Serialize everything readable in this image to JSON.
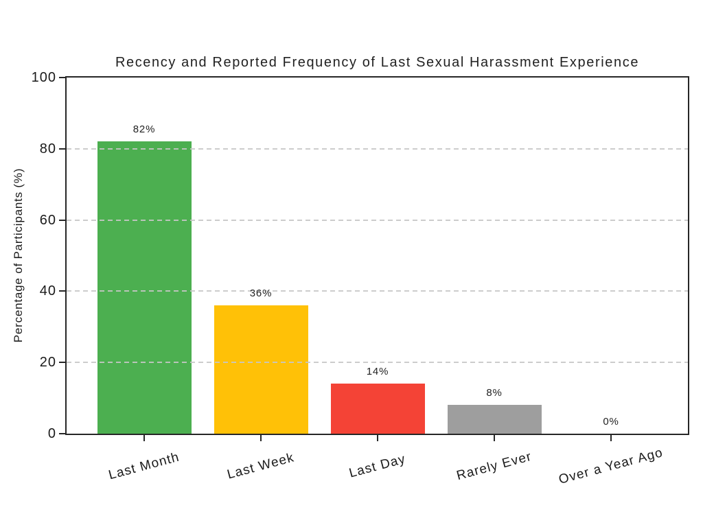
{
  "page": {
    "background_color": "#ffffff"
  },
  "chart_data": {
    "type": "bar",
    "title": "Recency and Reported Frequency of Last Sexual Harassment Experience",
    "xlabel": "",
    "ylabel": "Percentage of Participants (%)",
    "categories": [
      "Last Month",
      "Last Week",
      "Last Day",
      "Rarely Ever",
      "Over a Year Ago"
    ],
    "values": [
      82,
      36,
      14,
      8,
      0
    ],
    "value_labels": [
      "82%",
      "36%",
      "14%",
      "8%",
      "0%"
    ],
    "bar_colors": [
      "#4caf50",
      "#ffc107",
      "#f44336",
      "#9e9e9e",
      "#9e9e9e"
    ],
    "ylim": [
      0,
      100
    ],
    "yticks": [
      0,
      20,
      40,
      60,
      80,
      100
    ],
    "ytick_labels": [
      "0",
      "20",
      "40",
      "60",
      "80",
      "100"
    ],
    "grid": "horizontal dashed gridlines at 20, 40, 60, 80, drawn over bars",
    "legend": "none",
    "styles": {
      "axis_color": "#262626",
      "grid_color": "#c6c6c6",
      "text_color": "#1a1a1a",
      "title_color": "#212121"
    }
  }
}
